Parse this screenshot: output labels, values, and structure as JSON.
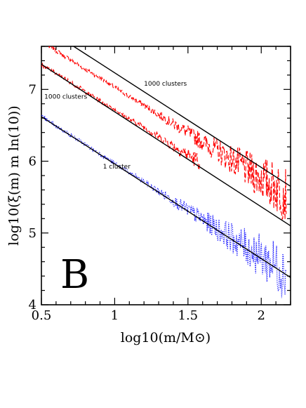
{
  "chart_data": {
    "type": "line",
    "title": "",
    "xlabel": "log10(m/M⊙)",
    "ylabel": "log10(ξ(m) m ln(10))",
    "xlim": [
      0.5,
      2.2
    ],
    "ylim": [
      4.0,
      7.6
    ],
    "xticks": [
      0.5,
      1,
      1.5,
      2
    ],
    "xtick_labels": [
      "0.5",
      "1",
      "1.5",
      "2"
    ],
    "yticks": [
      4,
      5,
      6,
      7
    ],
    "ytick_labels": [
      "4",
      "5",
      "6",
      "7"
    ],
    "panel_label": "B",
    "annotations": [
      {
        "text": "1000 clusters",
        "x": 1.2,
        "y": 7.05
      },
      {
        "text": "1000 clusters",
        "x": 0.52,
        "y": 6.87
      },
      {
        "text": "1 cluster",
        "x": 0.92,
        "y": 5.9
      }
    ],
    "series": [
      {
        "style": "dashed",
        "color": "#ff0000",
        "x": [
          0.55,
          0.6,
          0.7,
          0.8,
          0.9,
          1.0,
          1.1,
          1.2,
          1.3,
          1.4,
          1.5,
          1.6,
          1.7,
          1.8,
          1.9,
          2.0,
          2.1,
          2.17
        ],
        "y": [
          7.6,
          7.54,
          7.41,
          7.28,
          7.16,
          7.03,
          6.9,
          6.78,
          6.65,
          6.52,
          6.4,
          6.27,
          6.15,
          6.02,
          5.89,
          5.77,
          5.64,
          5.55
        ]
      },
      {
        "style": "dashed",
        "color": "#ff0000",
        "x": [
          0.5,
          0.6,
          0.7,
          0.8,
          0.9,
          1.0,
          1.1,
          1.2,
          1.3,
          1.4,
          1.5,
          1.58
        ],
        "y": [
          7.35,
          7.22,
          7.1,
          6.97,
          6.84,
          6.72,
          6.59,
          6.47,
          6.34,
          6.21,
          6.09,
          5.99
        ]
      },
      {
        "style": "dotted",
        "color": "#0000ff",
        "x": [
          0.5,
          0.6,
          0.7,
          0.8,
          0.9,
          1.0,
          1.1,
          1.2,
          1.3,
          1.4,
          1.5,
          1.6,
          1.7,
          1.8,
          1.9,
          2.0,
          2.1,
          2.17
        ],
        "y": [
          6.62,
          6.49,
          6.36,
          6.23,
          6.1,
          5.97,
          5.84,
          5.71,
          5.58,
          5.45,
          5.32,
          5.19,
          5.06,
          4.93,
          4.8,
          4.67,
          4.54,
          4.45
        ]
      }
    ],
    "fit_lines": [
      {
        "color": "#000000",
        "x": [
          0.72,
          2.2
        ],
        "y": [
          7.6,
          5.65
        ]
      },
      {
        "color": "#000000",
        "x": [
          0.5,
          2.2
        ],
        "y": [
          7.35,
          5.1
        ]
      },
      {
        "color": "#000000",
        "x": [
          0.5,
          2.2
        ],
        "y": [
          6.62,
          4.38
        ]
      }
    ]
  }
}
